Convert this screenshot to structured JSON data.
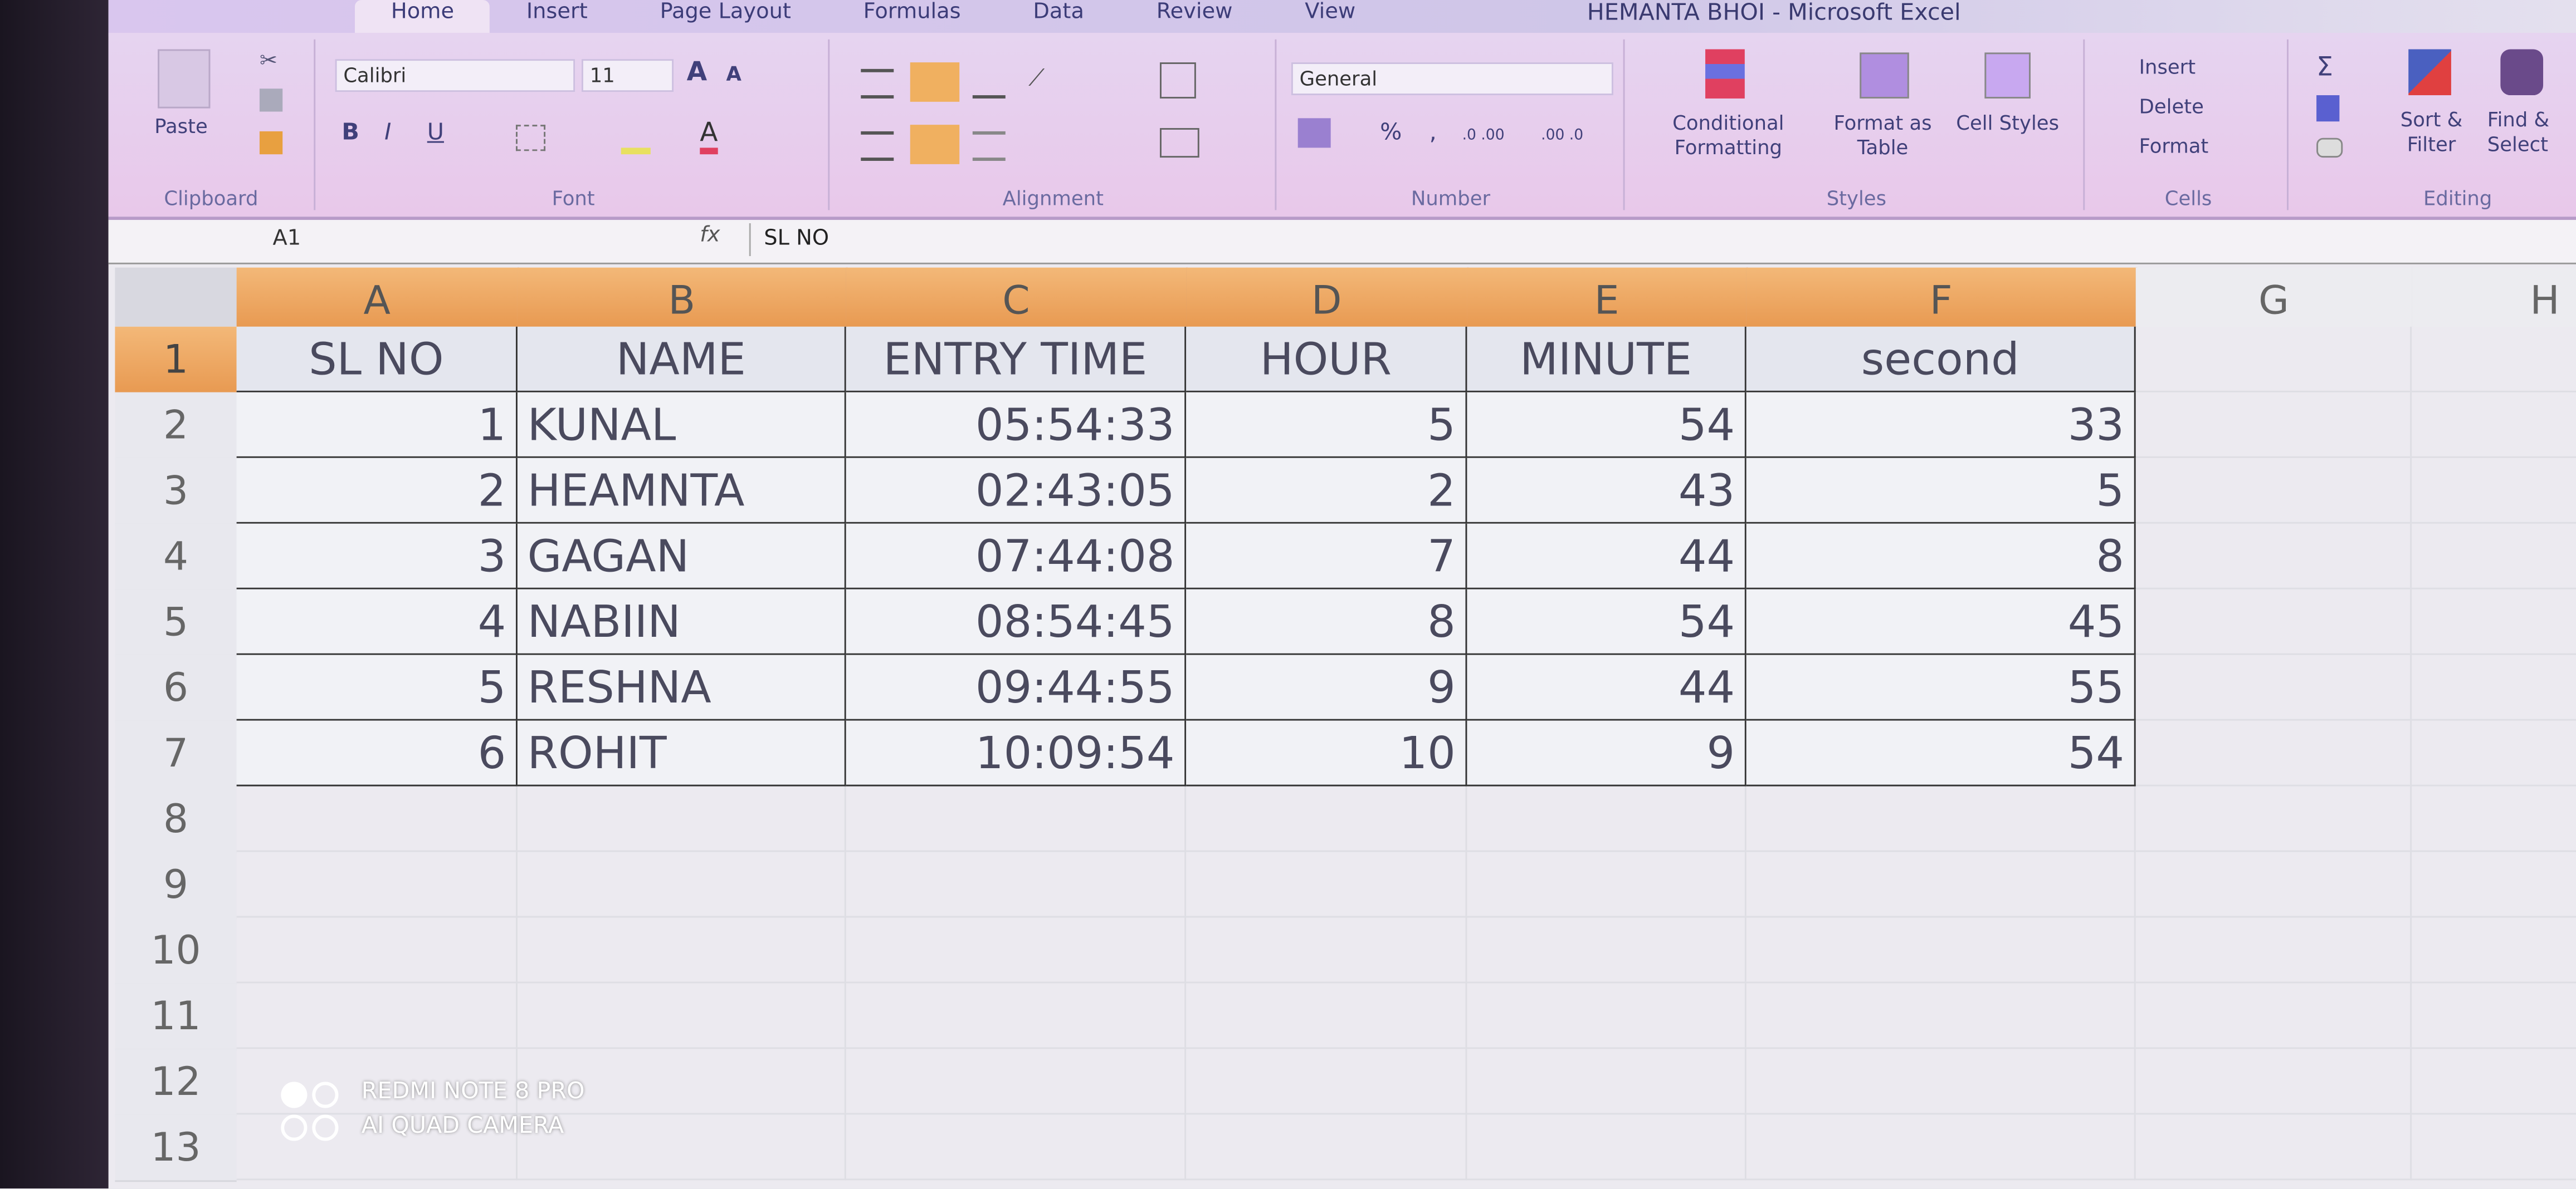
{
  "window": {
    "title": "HEMANTA BHOI - Microsoft Excel"
  },
  "ribbon": {
    "tabs": [
      "Home",
      "Insert",
      "Page Layout",
      "Formulas",
      "Data",
      "Review",
      "View"
    ],
    "active_tab": "Home",
    "clipboard": {
      "paste": "Paste",
      "label": "Clipboard"
    },
    "font": {
      "name": "Calibri",
      "size": "11",
      "bold": "B",
      "italic": "I",
      "underline": "U",
      "label": "Font"
    },
    "alignment": {
      "label": "Alignment"
    },
    "number": {
      "format": "General",
      "percent": "%",
      "comma": ",",
      "inc_decimal": ".0 .00",
      "dec_decimal": ".00 .0",
      "label": "Number"
    },
    "styles": {
      "conditional": "Conditional Formatting",
      "format_table": "Format as Table",
      "cell_styles": "Cell Styles",
      "label": "Styles"
    },
    "cells": {
      "insert": "Insert",
      "delete": "Delete",
      "format": "Format",
      "label": "Cells"
    },
    "editing": {
      "sum": "Σ",
      "sort": "Sort & Filter",
      "find": "Find & Select",
      "label": "Editing"
    }
  },
  "formula_bar": {
    "name_box": "A1",
    "fx": "fx",
    "value": "SL NO"
  },
  "sheet": {
    "columns": [
      "A",
      "B",
      "C",
      "D",
      "E",
      "F",
      "G",
      "H"
    ],
    "rows": [
      "1",
      "2",
      "3",
      "4",
      "5",
      "6",
      "7",
      "8",
      "9",
      "10",
      "11",
      "12",
      "13"
    ],
    "header": [
      "SL NO",
      "NAME",
      "ENTRY TIME",
      "HOUR",
      "MINUTE",
      "second"
    ],
    "data": [
      [
        "1",
        "KUNAL",
        "05:54:33",
        "5",
        "54",
        "33"
      ],
      [
        "2",
        "HEAMNTA",
        "02:43:05",
        "2",
        "43",
        "5"
      ],
      [
        "3",
        "GAGAN",
        "07:44:08",
        "7",
        "44",
        "8"
      ],
      [
        "4",
        "NABIIN",
        "08:54:45",
        "8",
        "54",
        "45"
      ],
      [
        "5",
        "RESHNA",
        "09:44:55",
        "9",
        "44",
        "55"
      ],
      [
        "6",
        "ROHIT",
        "10:09:54",
        "10",
        "9",
        "54"
      ]
    ]
  },
  "watermark": {
    "line1": "REDMI NOTE 8 PRO",
    "line2": "AI QUAD CAMERA"
  },
  "colors": {
    "selected_header": "#e89a52",
    "ribbon": "#e6d4f0",
    "tab_text": "#3c3c78"
  }
}
